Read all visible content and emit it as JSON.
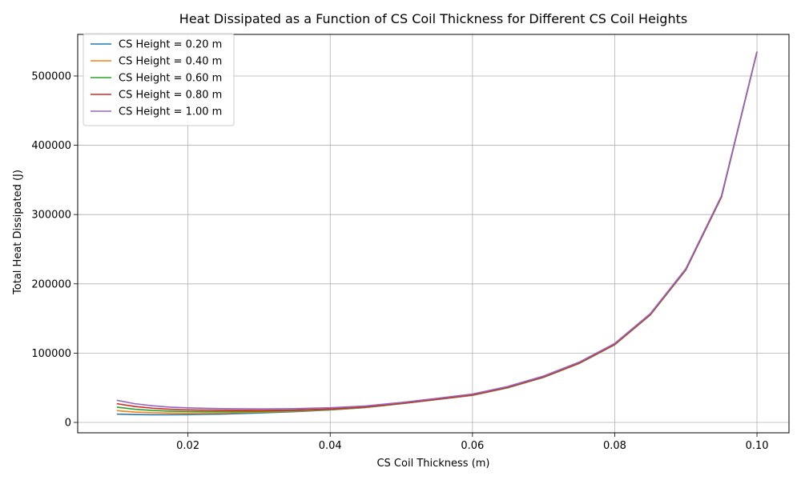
{
  "chart_data": {
    "type": "line",
    "title": "Heat Dissipated as a Function of CS Coil Thickness for Different CS Coil Heights",
    "xlabel": "CS Coil Thickness (m)",
    "ylabel": "Total Heat Dissipated (J)",
    "xlim": [
      0.0045,
      0.1045
    ],
    "ylim": [
      -15000,
      560000
    ],
    "xticks": [
      0.02,
      0.04,
      0.06,
      0.08,
      0.1
    ],
    "xtick_labels": [
      "0.02",
      "0.04",
      "0.06",
      "0.08",
      "0.10"
    ],
    "yticks": [
      0,
      100000,
      200000,
      300000,
      400000,
      500000
    ],
    "ytick_labels": [
      "0",
      "100000",
      "200000",
      "300000",
      "400000",
      "500000"
    ],
    "grid": true,
    "legend_position": "top-left",
    "x": [
      0.01,
      0.0125,
      0.015,
      0.0175,
      0.02,
      0.025,
      0.03,
      0.035,
      0.04,
      0.045,
      0.05,
      0.055,
      0.06,
      0.065,
      0.07,
      0.075,
      0.08,
      0.085,
      0.09,
      0.095,
      0.1
    ],
    "series": [
      {
        "name": "CS Height = 0.20 m",
        "color": "#1f77b4",
        "values": [
          12000,
          11300,
          11000,
          11000,
          11200,
          12000,
          13600,
          15500,
          18000,
          21500,
          27000,
          33000,
          39000,
          50000,
          65000,
          85000,
          112000,
          155000,
          220000,
          325000,
          535000
        ]
      },
      {
        "name": "CS Height = 0.40 m",
        "color": "#ff7f0e",
        "values": [
          17000,
          15000,
          14000,
          13500,
          13400,
          13800,
          14800,
          16200,
          18300,
          21600,
          27100,
          33100,
          39200,
          50200,
          65200,
          85200,
          112200,
          155200,
          220200,
          325200,
          535000
        ]
      },
      {
        "name": "CS Height = 0.60 m",
        "color": "#2ca02c",
        "values": [
          22000,
          19000,
          17300,
          16300,
          15800,
          15600,
          16000,
          17000,
          18700,
          21800,
          27200,
          33200,
          39400,
          50400,
          65400,
          85400,
          112400,
          155400,
          220400,
          325400,
          535000
        ]
      },
      {
        "name": "CS Height = 0.80 m",
        "color": "#d62728",
        "values": [
          27000,
          23000,
          20500,
          19000,
          18200,
          17500,
          17300,
          17900,
          19400,
          22300,
          27600,
          33600,
          39800,
          50800,
          65800,
          85800,
          112800,
          155800,
          220800,
          325800,
          535000
        ]
      },
      {
        "name": "CS Height = 1.00 m",
        "color": "#9467bd",
        "values": [
          32000,
          27000,
          24000,
          22000,
          21000,
          19800,
          19400,
          19900,
          21200,
          23800,
          28800,
          34800,
          41000,
          52000,
          67000,
          87000,
          114000,
          157000,
          222000,
          327000,
          535000
        ]
      }
    ]
  }
}
